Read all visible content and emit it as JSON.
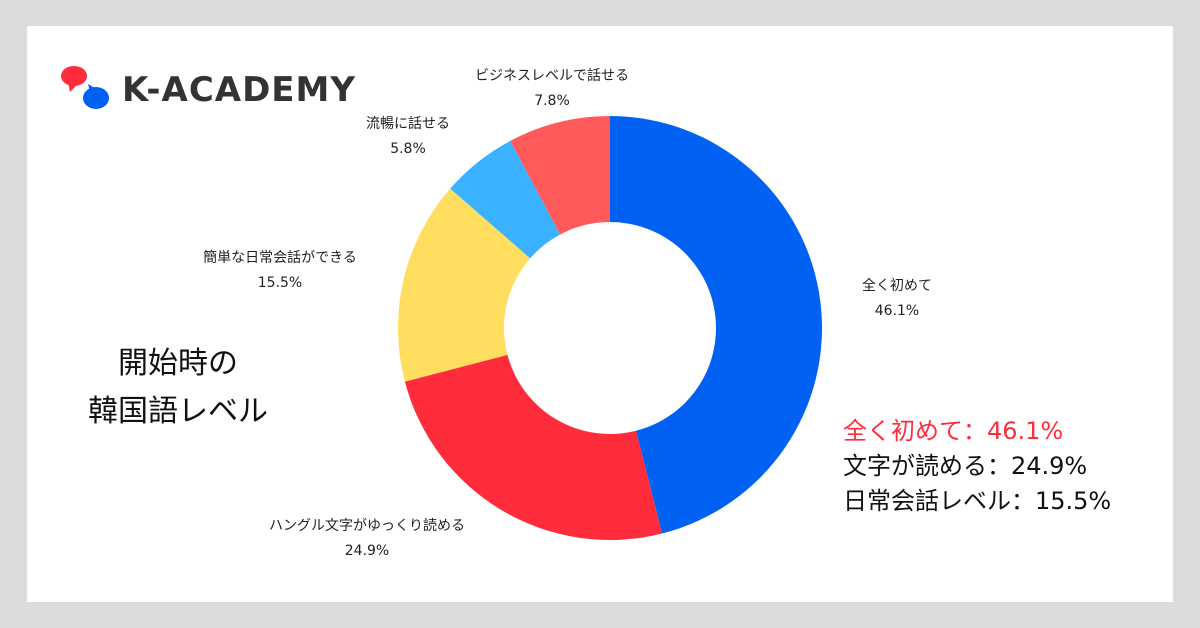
{
  "brand": {
    "name": "K-ACADEMY"
  },
  "heading": {
    "line1": "開始時の",
    "line2": "韓国語レベル"
  },
  "summary": [
    "全く初めて：46.1%",
    "文字が読める：24.9%",
    "日常会話レベル：15.5%"
  ],
  "colors": {
    "blue": "#0061f2",
    "red": "#ff2d3c",
    "yellow": "#ffdd5e",
    "light_blue": "#3bb2ff",
    "coral": "#ff5a5a"
  },
  "chart_data": {
    "type": "pie",
    "title": "",
    "categories": [
      "全く初めて",
      "ハングル文字がゆっくり読める",
      "簡単な日常会話ができる",
      "流暢に話せる",
      "ビジネスレベルで話せる"
    ],
    "values": [
      46.1,
      24.9,
      15.5,
      5.8,
      7.8
    ],
    "value_labels": [
      "46.1%",
      "24.9%",
      "15.5%",
      "5.8%",
      "7.8%"
    ],
    "colors": [
      "#0061f2",
      "#ff2d3c",
      "#ffdd5e",
      "#3bb2ff",
      "#ff5a5a"
    ],
    "donut": true,
    "start": "top, clockwise"
  }
}
